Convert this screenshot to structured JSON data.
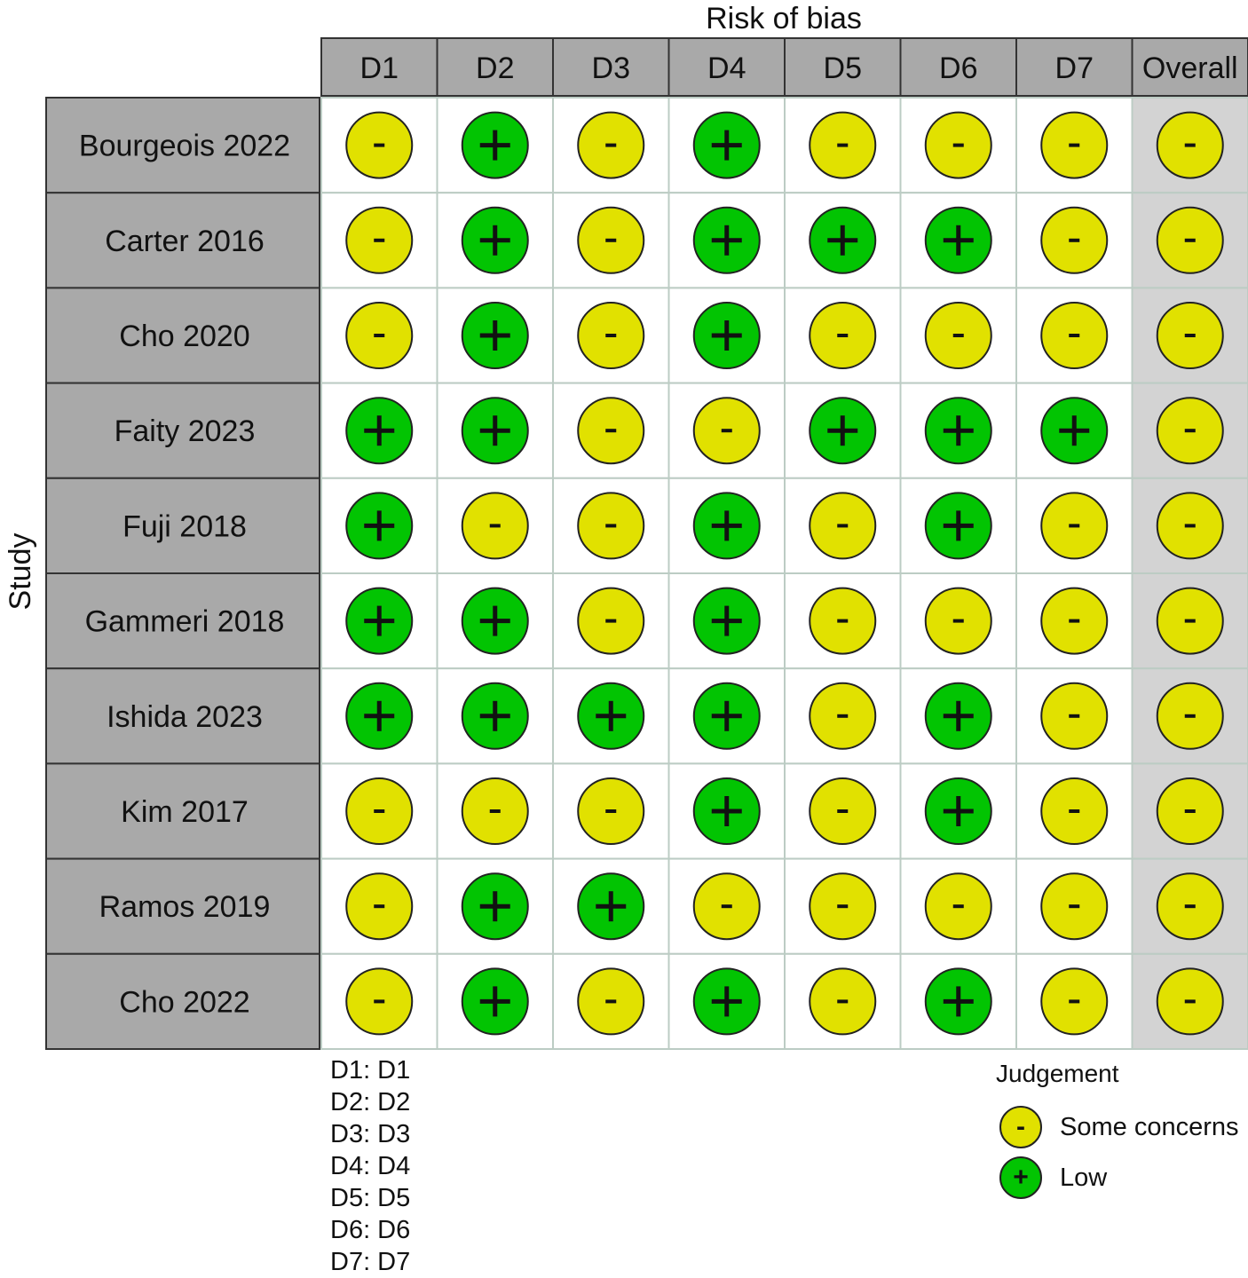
{
  "chart_data": {
    "type": "table",
    "title": "Risk of bias",
    "ylabel": "Study",
    "domains": [
      "D1",
      "D2",
      "D3",
      "D4",
      "D5",
      "D6",
      "D7",
      "Overall"
    ],
    "studies": [
      {
        "name": "Bourgeois 2022",
        "judgements": [
          "-",
          "+",
          "-",
          "+",
          "-",
          "-",
          "-",
          "-"
        ]
      },
      {
        "name": "Carter 2016",
        "judgements": [
          "-",
          "+",
          "-",
          "+",
          "+",
          "+",
          "-",
          "-"
        ]
      },
      {
        "name": "Cho  2020",
        "judgements": [
          "-",
          "+",
          "-",
          "+",
          "-",
          "-",
          "-",
          "-"
        ]
      },
      {
        "name": "Faity 2023",
        "judgements": [
          "+",
          "+",
          "-",
          "-",
          "+",
          "+",
          "+",
          "-"
        ]
      },
      {
        "name": "Fuji 2018",
        "judgements": [
          "+",
          "-",
          "-",
          "+",
          "-",
          "+",
          "-",
          "-"
        ]
      },
      {
        "name": "Gammeri 2018",
        "judgements": [
          "+",
          "+",
          "-",
          "+",
          "-",
          "-",
          "-",
          "-"
        ]
      },
      {
        "name": "Ishida 2023",
        "judgements": [
          "+",
          "+",
          "+",
          "+",
          "-",
          "+",
          "-",
          "-"
        ]
      },
      {
        "name": "Kim 2017",
        "judgements": [
          "-",
          "-",
          "-",
          "+",
          "-",
          "+",
          "-",
          "-"
        ]
      },
      {
        "name": "Ramos 2019",
        "judgements": [
          "-",
          "+",
          "+",
          "-",
          "-",
          "-",
          "-",
          "-"
        ]
      },
      {
        "name": "Cho 2022",
        "judgements": [
          "-",
          "+",
          "-",
          "+",
          "-",
          "+",
          "-",
          "-"
        ]
      }
    ],
    "domain_key": [
      "D1: D1",
      "D2: D2",
      "D3: D3",
      "D4: D4",
      "D5: D5",
      "D6: D6",
      "D7: D7"
    ],
    "legend": {
      "title": "Judgement",
      "items": [
        {
          "symbol": "-",
          "label": "Some concerns",
          "color": "#e1e100"
        },
        {
          "symbol": "+",
          "label": "Low",
          "color": "#02c402"
        }
      ]
    },
    "colors": {
      "header_fill": "#a9a9a9",
      "study_fill": "#a9a9a9",
      "overall_fill": "#d3d3d3",
      "cell_fill": "#ffffff",
      "grid_line": "#bcccc4",
      "some_concerns": "#e1e100",
      "low": "#02c402"
    }
  }
}
